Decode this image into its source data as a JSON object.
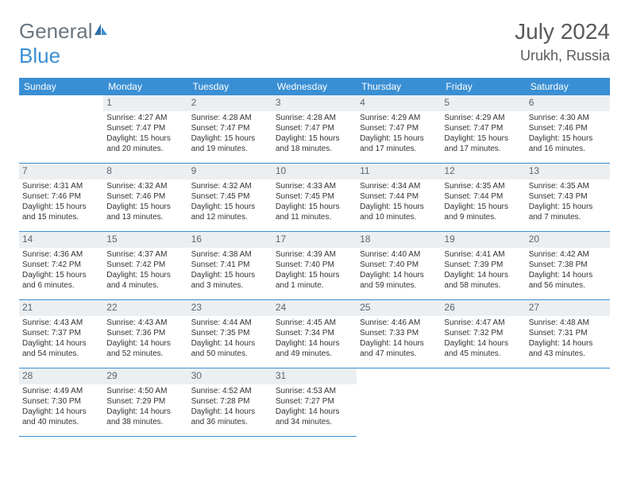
{
  "logo": {
    "part1": "General",
    "part2": "Blue"
  },
  "title": "July 2024",
  "location": "Urukh, Russia",
  "weekdays": [
    "Sunday",
    "Monday",
    "Tuesday",
    "Wednesday",
    "Thursday",
    "Friday",
    "Saturday"
  ],
  "colors": {
    "header_bg": "#3a8fd4",
    "header_text": "#ffffff",
    "daynum_bg": "#eceff1",
    "daynum_text": "#5a6570",
    "border": "#3a8fd4",
    "title_text": "#595959",
    "logo_gray": "#6b7680",
    "logo_blue": "#3a8fd4",
    "body_text": "#333333",
    "page_bg": "#ffffff"
  },
  "fonts": {
    "title_size": 28,
    "location_size": 18,
    "logo_size": 26,
    "weekday_size": 12,
    "daynum_size": 12,
    "cell_size": 10
  },
  "start_offset": 1,
  "days": [
    {
      "n": 1,
      "sunrise": "4:27 AM",
      "sunset": "7:47 PM",
      "daylight": "15 hours and 20 minutes."
    },
    {
      "n": 2,
      "sunrise": "4:28 AM",
      "sunset": "7:47 PM",
      "daylight": "15 hours and 19 minutes."
    },
    {
      "n": 3,
      "sunrise": "4:28 AM",
      "sunset": "7:47 PM",
      "daylight": "15 hours and 18 minutes."
    },
    {
      "n": 4,
      "sunrise": "4:29 AM",
      "sunset": "7:47 PM",
      "daylight": "15 hours and 17 minutes."
    },
    {
      "n": 5,
      "sunrise": "4:29 AM",
      "sunset": "7:47 PM",
      "daylight": "15 hours and 17 minutes."
    },
    {
      "n": 6,
      "sunrise": "4:30 AM",
      "sunset": "7:46 PM",
      "daylight": "15 hours and 16 minutes."
    },
    {
      "n": 7,
      "sunrise": "4:31 AM",
      "sunset": "7:46 PM",
      "daylight": "15 hours and 15 minutes."
    },
    {
      "n": 8,
      "sunrise": "4:32 AM",
      "sunset": "7:46 PM",
      "daylight": "15 hours and 13 minutes."
    },
    {
      "n": 9,
      "sunrise": "4:32 AM",
      "sunset": "7:45 PM",
      "daylight": "15 hours and 12 minutes."
    },
    {
      "n": 10,
      "sunrise": "4:33 AM",
      "sunset": "7:45 PM",
      "daylight": "15 hours and 11 minutes."
    },
    {
      "n": 11,
      "sunrise": "4:34 AM",
      "sunset": "7:44 PM",
      "daylight": "15 hours and 10 minutes."
    },
    {
      "n": 12,
      "sunrise": "4:35 AM",
      "sunset": "7:44 PM",
      "daylight": "15 hours and 9 minutes."
    },
    {
      "n": 13,
      "sunrise": "4:35 AM",
      "sunset": "7:43 PM",
      "daylight": "15 hours and 7 minutes."
    },
    {
      "n": 14,
      "sunrise": "4:36 AM",
      "sunset": "7:42 PM",
      "daylight": "15 hours and 6 minutes."
    },
    {
      "n": 15,
      "sunrise": "4:37 AM",
      "sunset": "7:42 PM",
      "daylight": "15 hours and 4 minutes."
    },
    {
      "n": 16,
      "sunrise": "4:38 AM",
      "sunset": "7:41 PM",
      "daylight": "15 hours and 3 minutes."
    },
    {
      "n": 17,
      "sunrise": "4:39 AM",
      "sunset": "7:40 PM",
      "daylight": "15 hours and 1 minute."
    },
    {
      "n": 18,
      "sunrise": "4:40 AM",
      "sunset": "7:40 PM",
      "daylight": "14 hours and 59 minutes."
    },
    {
      "n": 19,
      "sunrise": "4:41 AM",
      "sunset": "7:39 PM",
      "daylight": "14 hours and 58 minutes."
    },
    {
      "n": 20,
      "sunrise": "4:42 AM",
      "sunset": "7:38 PM",
      "daylight": "14 hours and 56 minutes."
    },
    {
      "n": 21,
      "sunrise": "4:43 AM",
      "sunset": "7:37 PM",
      "daylight": "14 hours and 54 minutes."
    },
    {
      "n": 22,
      "sunrise": "4:43 AM",
      "sunset": "7:36 PM",
      "daylight": "14 hours and 52 minutes."
    },
    {
      "n": 23,
      "sunrise": "4:44 AM",
      "sunset": "7:35 PM",
      "daylight": "14 hours and 50 minutes."
    },
    {
      "n": 24,
      "sunrise": "4:45 AM",
      "sunset": "7:34 PM",
      "daylight": "14 hours and 49 minutes."
    },
    {
      "n": 25,
      "sunrise": "4:46 AM",
      "sunset": "7:33 PM",
      "daylight": "14 hours and 47 minutes."
    },
    {
      "n": 26,
      "sunrise": "4:47 AM",
      "sunset": "7:32 PM",
      "daylight": "14 hours and 45 minutes."
    },
    {
      "n": 27,
      "sunrise": "4:48 AM",
      "sunset": "7:31 PM",
      "daylight": "14 hours and 43 minutes."
    },
    {
      "n": 28,
      "sunrise": "4:49 AM",
      "sunset": "7:30 PM",
      "daylight": "14 hours and 40 minutes."
    },
    {
      "n": 29,
      "sunrise": "4:50 AM",
      "sunset": "7:29 PM",
      "daylight": "14 hours and 38 minutes."
    },
    {
      "n": 30,
      "sunrise": "4:52 AM",
      "sunset": "7:28 PM",
      "daylight": "14 hours and 36 minutes."
    },
    {
      "n": 31,
      "sunrise": "4:53 AM",
      "sunset": "7:27 PM",
      "daylight": "14 hours and 34 minutes."
    }
  ],
  "labels": {
    "sunrise": "Sunrise: ",
    "sunset": "Sunset: ",
    "daylight": "Daylight: "
  }
}
